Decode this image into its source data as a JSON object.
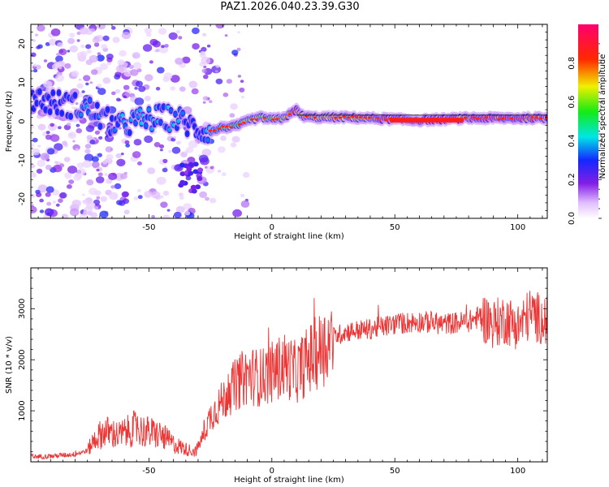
{
  "title": "PAZ1.2026.040.23.39.G30",
  "colors": {
    "snr_line": "#ee3333",
    "axes": "#000000",
    "background": "#ffffff"
  },
  "chart_data": [
    {
      "type": "heatmap",
      "name": "spectrogram",
      "xlabel": "Height of straight line (km)",
      "ylabel": "Frequency (Hz)",
      "xlim": [
        -98,
        112
      ],
      "ylim": [
        -25,
        25
      ],
      "x_ticks": [
        -50,
        0,
        50,
        100
      ],
      "y_ticks": [
        -20,
        -10,
        0,
        10,
        20
      ],
      "x_tick_labels": [
        "-50",
        "0",
        "50",
        "100"
      ],
      "y_tick_labels": [
        "-20",
        "-10",
        "0",
        "10",
        "20"
      ],
      "colorbar": {
        "label": "Normalized spectral amplitude",
        "range": [
          0,
          1
        ],
        "ticks": [
          0.0,
          0.2,
          0.4,
          0.6,
          0.8
        ],
        "tick_labels": [
          "0.0",
          "0.2",
          "0.4",
          "0.6",
          "0.8"
        ]
      },
      "ridge": {
        "height_km": [
          -98,
          -90,
          -80,
          -74,
          -68,
          -62,
          -56,
          -50,
          -44,
          -38,
          -32,
          -28,
          -24,
          -20,
          -16,
          -12,
          -8,
          -4,
          0,
          4,
          8,
          10,
          12,
          16,
          20,
          24,
          30,
          40,
          50,
          60,
          70,
          80,
          90,
          100,
          112
        ],
        "frequency_hz": [
          6,
          5,
          4,
          3,
          0.5,
          -1.5,
          0,
          0.5,
          1,
          0.5,
          -1.5,
          -2.5,
          -2.5,
          -1.5,
          -1.5,
          -0.5,
          0.5,
          1,
          0.5,
          0.8,
          2,
          3,
          1.5,
          1,
          1,
          1,
          1,
          0.8,
          0.5,
          0.3,
          0.5,
          0.8,
          0.8,
          0.8,
          0.8
        ],
        "amplitude": [
          0.15,
          0.2,
          0.3,
          0.35,
          0.3,
          0.35,
          0.35,
          0.35,
          0.35,
          0.35,
          0.2,
          0.3,
          0.4,
          0.55,
          0.6,
          0.6,
          0.6,
          0.65,
          0.65,
          0.7,
          0.75,
          0.75,
          0.7,
          0.7,
          0.7,
          0.7,
          0.65,
          0.7,
          0.9,
          0.95,
          0.9,
          0.8,
          0.85,
          0.85,
          0.85
        ]
      }
    },
    {
      "type": "line",
      "name": "snr",
      "xlabel": "Height of straight line (km)",
      "ylabel": "SNR (10 * v/v)",
      "xlim": [
        -98,
        112
      ],
      "ylim": [
        0,
        3800
      ],
      "x_ticks": [
        -50,
        0,
        50,
        100
      ],
      "y_ticks": [
        1000,
        2000,
        3000
      ],
      "x_tick_labels": [
        "-50",
        "0",
        "50",
        "100"
      ],
      "y_tick_labels": [
        "1000",
        "2000",
        "3000"
      ],
      "series": [
        {
          "name": "SNR",
          "x": [
            -98,
            -90,
            -80,
            -75,
            -72,
            -68,
            -62,
            -56,
            -50,
            -45,
            -40,
            -35,
            -31,
            -28,
            -25,
            -20,
            -15,
            -10,
            -5,
            0,
            5,
            10,
            15,
            20,
            25,
            30,
            40,
            50,
            60,
            70,
            80,
            85,
            90,
            95,
            100,
            105,
            112
          ],
          "y": [
            100,
            110,
            150,
            220,
            450,
            600,
            520,
            650,
            580,
            520,
            350,
            250,
            200,
            500,
            900,
            1200,
            1500,
            1700,
            1650,
            1750,
            1900,
            1750,
            2000,
            2200,
            2450,
            2550,
            2600,
            2700,
            2750,
            2700,
            2750,
            2850,
            2700,
            2800,
            2650,
            2900,
            2750
          ]
        }
      ]
    }
  ]
}
